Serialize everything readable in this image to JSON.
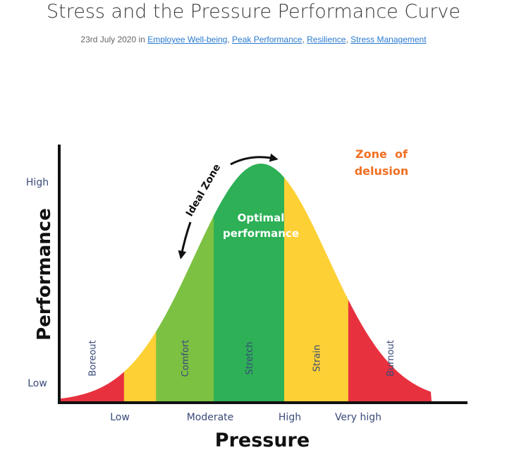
{
  "post": {
    "title": "Stress and the Pressure Performance Curve",
    "date": "23rd July 2020",
    "in_word": "in",
    "separator": ",",
    "categories": [
      "Employee Well-being",
      "Peak Performance",
      "Resilience",
      "Stress Management"
    ]
  },
  "chart_data": {
    "type": "area",
    "title": "",
    "xlabel": "Pressure",
    "ylabel": "Performance",
    "x_ticks": [
      "Low",
      "Moderate",
      "High",
      "Very high"
    ],
    "y_ticks": [
      "Low",
      "High"
    ],
    "curve": "bell",
    "zones": [
      {
        "name": "Boreout",
        "color": "#e8313f",
        "x_range": [
          0,
          1.0
        ]
      },
      {
        "name": "",
        "color": "#fdd035",
        "x_range": [
          1.0,
          1.5
        ]
      },
      {
        "name": "Comfort",
        "color": "#7cc142",
        "x_range": [
          1.5,
          2.4
        ]
      },
      {
        "name": "Stretch",
        "color": "#2db056",
        "x_range": [
          2.4,
          3.5
        ]
      },
      {
        "name": "Strain",
        "color": "#fdd035",
        "x_range": [
          3.5,
          4.5
        ]
      },
      {
        "name": "Burnout",
        "color": "#e8313f",
        "x_range": [
          4.5,
          5.8
        ]
      }
    ],
    "annotations": {
      "peak_label": [
        "Optimal",
        "performance"
      ],
      "ideal_zone": "Ideal Zone",
      "delusion": [
        "Zone  of",
        "delusion"
      ]
    },
    "colors": {
      "axis": "#111111",
      "tick_text": "#3a4a7a",
      "delusion_text": "#f26f22",
      "inner_text": "#ffffff",
      "zone_label": "#3a4a7a"
    }
  }
}
